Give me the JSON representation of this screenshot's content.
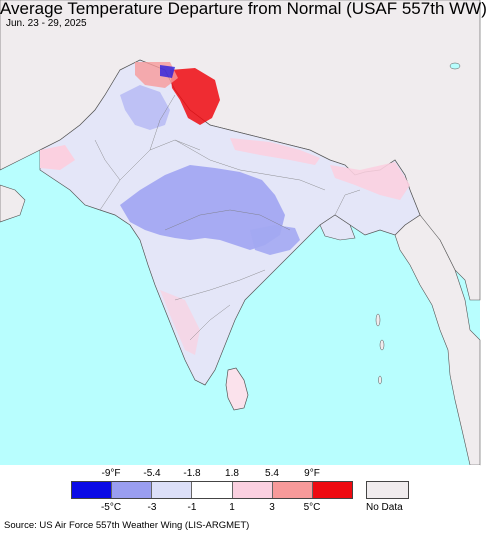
{
  "title": "Average Temperature Departure from Normal (USAF 557th WW)",
  "date_range": "Jun. 23 - 29, 2025",
  "legend": {
    "fahrenheit_ticks": [
      "-9°F",
      "-5.4",
      "-1.8",
      "1.8",
      "5.4",
      "9°F"
    ],
    "celsius_ticks": [
      "-5°C",
      "-3",
      "-1",
      "1",
      "3",
      "5°C"
    ],
    "bins": [
      {
        "color": "#0b0be6"
      },
      {
        "color": "#9a9ef0"
      },
      {
        "color": "#dcdff8"
      },
      {
        "color": "#ffffff"
      },
      {
        "color": "#fbd0e0"
      },
      {
        "color": "#f79a9a"
      },
      {
        "color": "#ee0a10"
      }
    ],
    "no_data_label": "No Data",
    "no_data_color": "#f0ecee"
  },
  "colors": {
    "ocean": "#b8fefe",
    "outside_region": "#f0ecee",
    "border": "#555555"
  },
  "source": "Source: US Air Force 557th Weather Wing (LIS-ARGMET)"
}
